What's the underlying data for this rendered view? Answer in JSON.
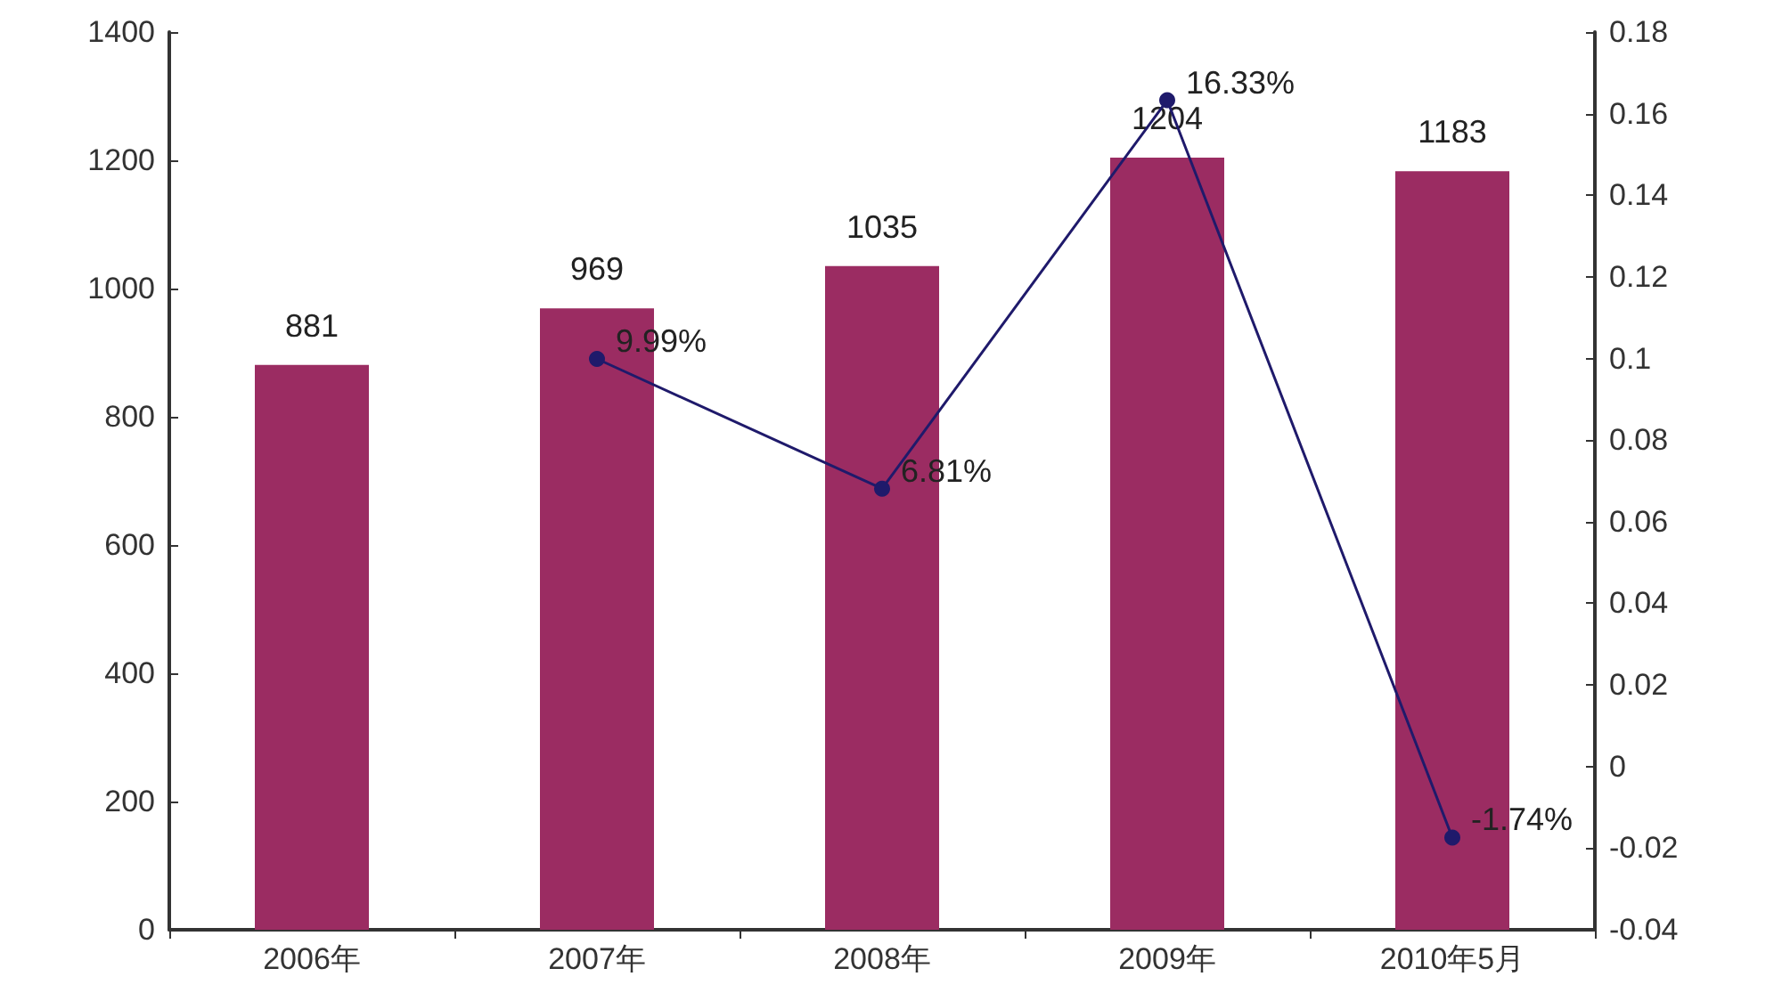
{
  "chart_data": {
    "type": "bar",
    "categories": [
      "2006年",
      "2007年",
      "2008年",
      "2009年",
      "2010年5月"
    ],
    "series": [
      {
        "color": "#9b2c62",
        "values": [
          881,
          969,
          1035,
          1204,
          1183
        ]
      },
      {
        "type": "line",
        "axis": "y2",
        "color": "#1f1a6b",
        "values": [
          null,
          0.0999,
          0.0681,
          0.1633,
          -0.0174
        ],
        "value_labels": [
          null,
          "9.99%",
          "6.81%",
          "16.33%",
          "-1.74%"
        ]
      }
    ],
    "ylim": [
      0,
      1400
    ],
    "yticks": [
      0,
      200,
      400,
      600,
      800,
      1000,
      1200,
      1400
    ],
    "y2lim": [
      -0.04,
      0.18
    ],
    "y2ticks": [
      -0.04,
      -0.02,
      0,
      0.02,
      0.04,
      0.06,
      0.08,
      0.1,
      0.12,
      0.14,
      0.16,
      0.18
    ],
    "data_labels": true,
    "grid": false,
    "marker": "circle",
    "line_style": "solid"
  }
}
